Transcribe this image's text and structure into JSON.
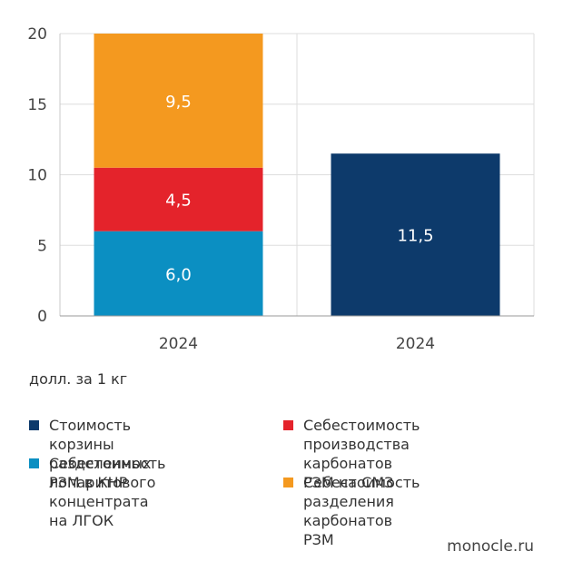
{
  "chart_data": {
    "type": "bar",
    "stacked": true,
    "categories": [
      "2024",
      "2024"
    ],
    "ylim": [
      0,
      20
    ],
    "yticks": [
      0,
      5,
      10,
      15,
      20
    ],
    "grid": true,
    "series": [
      {
        "name": "Себестоимость лопаритового концентрата на ЛГОК",
        "color": "#0b8fc2",
        "values": [
          6.0,
          null
        ],
        "labels": [
          "6,0",
          null
        ]
      },
      {
        "name": "Себестоимость производства карбонатов РЗМ на СМЗ",
        "color": "#e4232b",
        "values": [
          4.5,
          null
        ],
        "labels": [
          "4,5",
          null
        ]
      },
      {
        "name": "Себестоимость разделения карбонатов РЗМ",
        "color": "#f4991f",
        "values": [
          9.5,
          null
        ],
        "labels": [
          "9,5",
          null
        ]
      },
      {
        "name": "Стоимость корзины разделенных РЗМ в КНР",
        "color": "#0d3a6b",
        "values": [
          null,
          11.5
        ],
        "labels": [
          null,
          "11,5"
        ]
      }
    ],
    "unit_label": "долл. за 1 кг",
    "legend": [
      {
        "text": "Стоимость корзины\nразделенных РЗМ в КНР",
        "color": "#0d3a6b"
      },
      {
        "text": "Себестоимость\nлопаритового концентрата\nна ЛГОК",
        "color": "#0b8fc2"
      },
      {
        "text": "Себестоимость\nпроизводства карбонатов\nРЗМ на СМЗ",
        "color": "#e4232b"
      },
      {
        "text": "Себестоимость разделения\nкарбонатов РЗМ",
        "color": "#f4991f"
      }
    ],
    "legend_placement": "bottom",
    "source": "monocle.ru"
  }
}
